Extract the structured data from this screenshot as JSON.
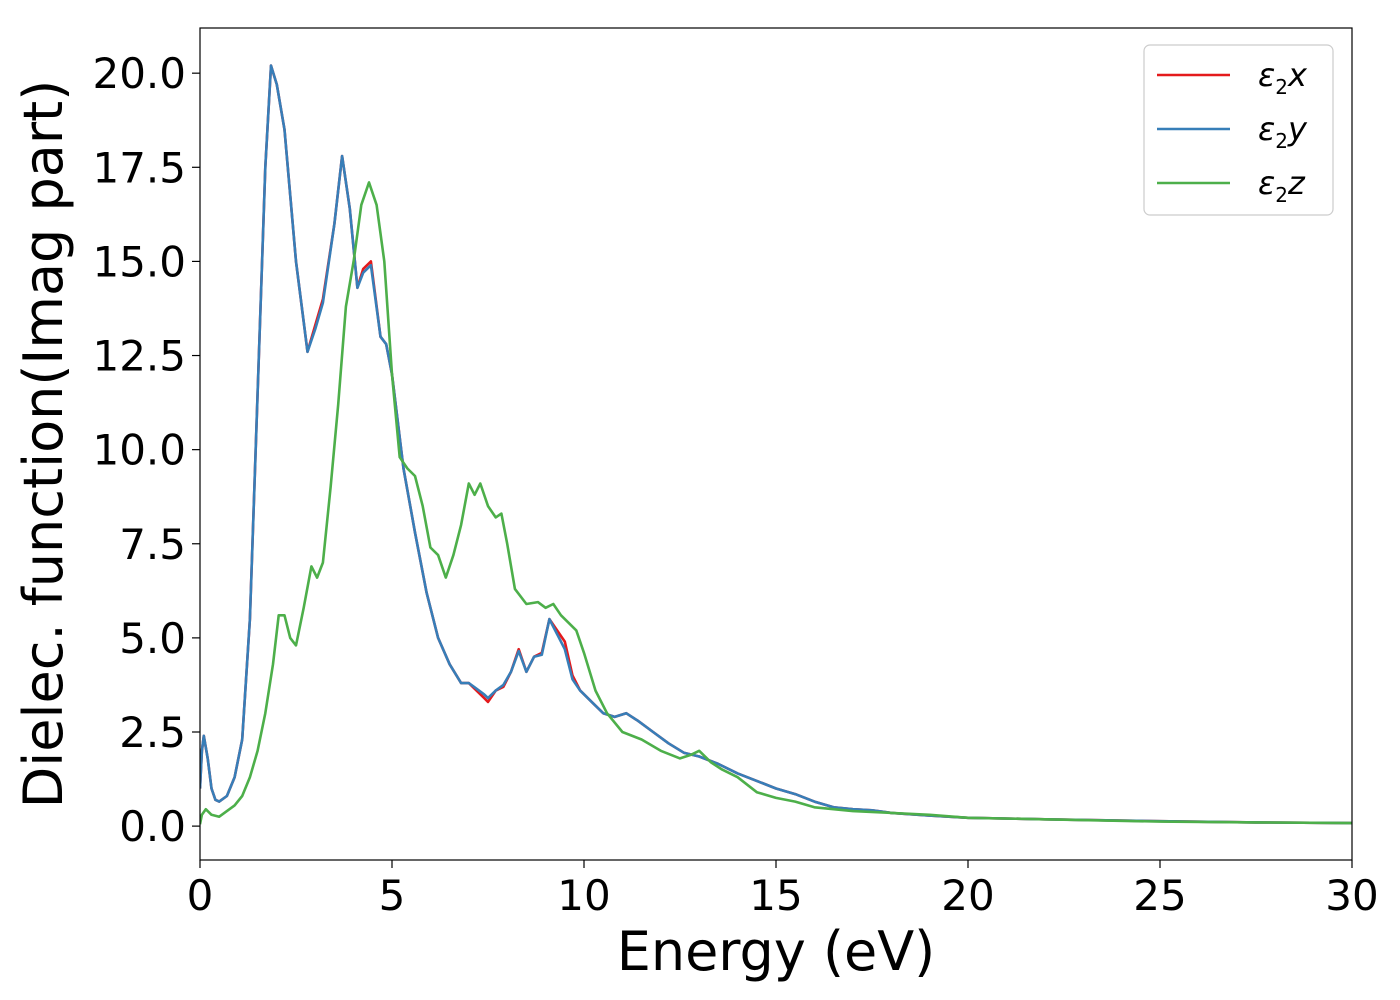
{
  "chart_data": {
    "type": "line",
    "xlabel": "Energy (eV)",
    "ylabel": "Dielec. function(Imag part)",
    "xlim": [
      0,
      30
    ],
    "ylim": [
      -0.9,
      21.2
    ],
    "xticks": [
      0,
      5,
      10,
      15,
      20,
      25,
      30
    ],
    "xtick_labels": [
      "0",
      "5",
      "10",
      "15",
      "20",
      "25",
      "30"
    ],
    "yticks": [
      0.0,
      2.5,
      5.0,
      7.5,
      10.0,
      12.5,
      15.0,
      17.5,
      20.0
    ],
    "ytick_labels": [
      "0.0",
      "2.5",
      "5.0",
      "7.5",
      "10.0",
      "12.5",
      "15.0",
      "17.5",
      "20.0"
    ],
    "grid": false,
    "legend_position": "top-right",
    "series": [
      {
        "name": "ε2x",
        "label_base": "ε",
        "label_sub": "2",
        "label_var": "x",
        "color": "#e41a1c",
        "x": [
          0,
          0.05,
          0.1,
          0.2,
          0.3,
          0.4,
          0.5,
          0.7,
          0.9,
          1.1,
          1.3,
          1.5,
          1.7,
          1.85,
          2.0,
          2.2,
          2.5,
          2.8,
          3.0,
          3.2,
          3.5,
          3.7,
          3.9,
          4.1,
          4.25,
          4.45,
          4.7,
          4.85,
          5.0,
          5.3,
          5.6,
          5.9,
          6.2,
          6.5,
          6.8,
          7.0,
          7.2,
          7.4,
          7.5,
          7.7,
          7.9,
          8.1,
          8.3,
          8.5,
          8.7,
          8.9,
          9.1,
          9.3,
          9.5,
          9.7,
          9.9,
          10.2,
          10.5,
          10.8,
          11.1,
          11.4,
          11.8,
          12.2,
          12.6,
          13.0,
          13.5,
          14.0,
          14.5,
          15.0,
          15.5,
          16.0,
          16.5,
          17.0,
          17.5,
          18.0,
          19.0,
          20.0,
          22.0,
          25.0,
          27.5,
          30.0
        ],
        "values": [
          1.0,
          2.0,
          2.4,
          1.8,
          1.0,
          0.7,
          0.65,
          0.8,
          1.3,
          2.3,
          5.5,
          11.5,
          17.5,
          20.2,
          19.7,
          18.5,
          15.0,
          12.6,
          13.3,
          14.0,
          16.0,
          17.8,
          16.4,
          14.3,
          14.8,
          15.0,
          13.0,
          12.8,
          12.0,
          9.5,
          7.8,
          6.2,
          5.0,
          4.3,
          3.8,
          3.8,
          3.6,
          3.4,
          3.3,
          3.6,
          3.7,
          4.1,
          4.7,
          4.1,
          4.5,
          4.6,
          5.5,
          5.2,
          4.9,
          4.0,
          3.6,
          3.3,
          3.0,
          2.9,
          3.0,
          2.8,
          2.5,
          2.2,
          1.95,
          1.85,
          1.65,
          1.4,
          1.2,
          1.0,
          0.85,
          0.65,
          0.5,
          0.45,
          0.42,
          0.35,
          0.28,
          0.22,
          0.18,
          0.13,
          0.1,
          0.08
        ]
      },
      {
        "name": "ε2y",
        "label_base": "ε",
        "label_sub": "2",
        "label_var": "y",
        "color": "#377eb8",
        "x": [
          0,
          0.05,
          0.1,
          0.2,
          0.3,
          0.4,
          0.5,
          0.7,
          0.9,
          1.1,
          1.3,
          1.5,
          1.7,
          1.85,
          2.0,
          2.2,
          2.5,
          2.8,
          3.0,
          3.2,
          3.5,
          3.7,
          3.9,
          4.1,
          4.25,
          4.45,
          4.7,
          4.85,
          5.0,
          5.3,
          5.6,
          5.9,
          6.2,
          6.5,
          6.8,
          7.0,
          7.2,
          7.4,
          7.5,
          7.7,
          7.9,
          8.1,
          8.3,
          8.5,
          8.7,
          8.9,
          9.1,
          9.3,
          9.5,
          9.7,
          9.9,
          10.2,
          10.5,
          10.8,
          11.1,
          11.4,
          11.8,
          12.2,
          12.6,
          13.0,
          13.5,
          14.0,
          14.5,
          15.0,
          15.5,
          16.0,
          16.5,
          17.0,
          17.5,
          18.0,
          19.0,
          20.0,
          22.0,
          25.0,
          27.5,
          30.0
        ],
        "values": [
          1.0,
          2.0,
          2.4,
          1.8,
          1.0,
          0.7,
          0.65,
          0.8,
          1.3,
          2.3,
          5.5,
          11.5,
          17.5,
          20.2,
          19.7,
          18.5,
          15.0,
          12.6,
          13.2,
          13.9,
          16.0,
          17.8,
          16.4,
          14.3,
          14.7,
          14.9,
          13.0,
          12.8,
          12.0,
          9.5,
          7.8,
          6.2,
          5.0,
          4.3,
          3.8,
          3.8,
          3.65,
          3.5,
          3.4,
          3.6,
          3.75,
          4.1,
          4.65,
          4.1,
          4.5,
          4.55,
          5.5,
          5.1,
          4.7,
          3.9,
          3.6,
          3.3,
          3.0,
          2.9,
          3.0,
          2.8,
          2.5,
          2.2,
          1.95,
          1.85,
          1.65,
          1.4,
          1.2,
          1.0,
          0.85,
          0.65,
          0.5,
          0.45,
          0.42,
          0.35,
          0.28,
          0.22,
          0.18,
          0.13,
          0.1,
          0.08
        ]
      },
      {
        "name": "ε2z",
        "label_base": "ε",
        "label_sub": "2",
        "label_var": "z",
        "color": "#4daf4a",
        "x": [
          0,
          0.05,
          0.15,
          0.3,
          0.5,
          0.7,
          0.9,
          1.1,
          1.3,
          1.5,
          1.7,
          1.9,
          2.05,
          2.2,
          2.35,
          2.5,
          2.7,
          2.9,
          3.05,
          3.2,
          3.4,
          3.6,
          3.8,
          4.0,
          4.2,
          4.4,
          4.6,
          4.8,
          5.0,
          5.2,
          5.4,
          5.6,
          5.8,
          6.0,
          6.2,
          6.4,
          6.6,
          6.8,
          7.0,
          7.15,
          7.3,
          7.5,
          7.7,
          7.85,
          8.0,
          8.2,
          8.5,
          8.8,
          9.0,
          9.2,
          9.4,
          9.6,
          9.8,
          10.0,
          10.3,
          10.6,
          11.0,
          11.5,
          12.0,
          12.5,
          12.8,
          13.0,
          13.3,
          13.6,
          14.0,
          14.5,
          15.0,
          15.5,
          16.0,
          16.5,
          17.0,
          18.0,
          19.0,
          20.0,
          22.0,
          25.0,
          27.5,
          30.0
        ],
        "values": [
          0.05,
          0.3,
          0.45,
          0.3,
          0.25,
          0.4,
          0.55,
          0.8,
          1.3,
          2.0,
          3.0,
          4.3,
          5.6,
          5.6,
          5.0,
          4.8,
          5.8,
          6.9,
          6.6,
          7.0,
          9.0,
          11.2,
          13.8,
          15.0,
          16.5,
          17.1,
          16.5,
          15.0,
          12.0,
          9.8,
          9.5,
          9.3,
          8.5,
          7.4,
          7.2,
          6.6,
          7.2,
          8.0,
          9.1,
          8.8,
          9.1,
          8.5,
          8.2,
          8.3,
          7.5,
          6.3,
          5.9,
          5.95,
          5.8,
          5.9,
          5.6,
          5.4,
          5.2,
          4.6,
          3.6,
          3.0,
          2.5,
          2.3,
          2.0,
          1.8,
          1.9,
          2.0,
          1.7,
          1.5,
          1.3,
          0.9,
          0.75,
          0.65,
          0.5,
          0.45,
          0.4,
          0.35,
          0.3,
          0.22,
          0.18,
          0.12,
          0.1,
          0.08
        ]
      }
    ]
  }
}
